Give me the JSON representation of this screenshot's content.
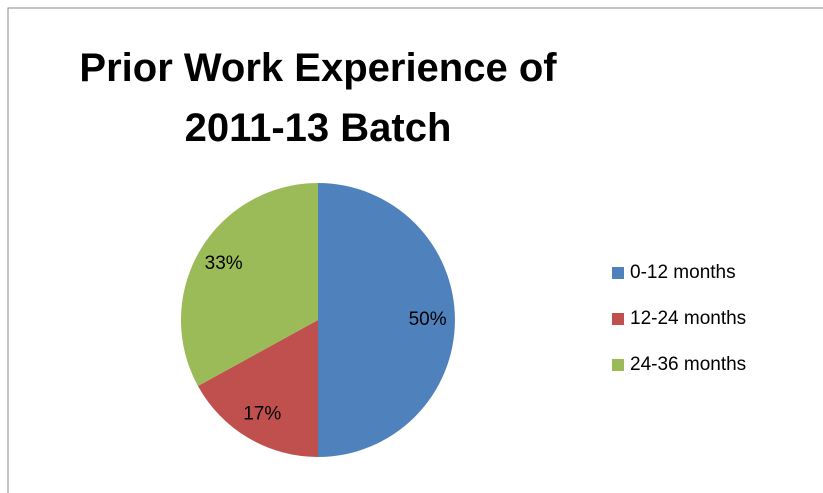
{
  "chart_data": {
    "type": "pie",
    "title": "Prior Work Experience of 2011-13 Batch",
    "categories": [
      "0-12 months",
      "12-24 months",
      "24-36 months"
    ],
    "values": [
      50,
      17,
      33
    ],
    "value_labels": [
      "50%",
      "17%",
      "33%"
    ],
    "colors": [
      "#4f81bd",
      "#c0504d",
      "#9bbb59"
    ],
    "legend": "right"
  }
}
